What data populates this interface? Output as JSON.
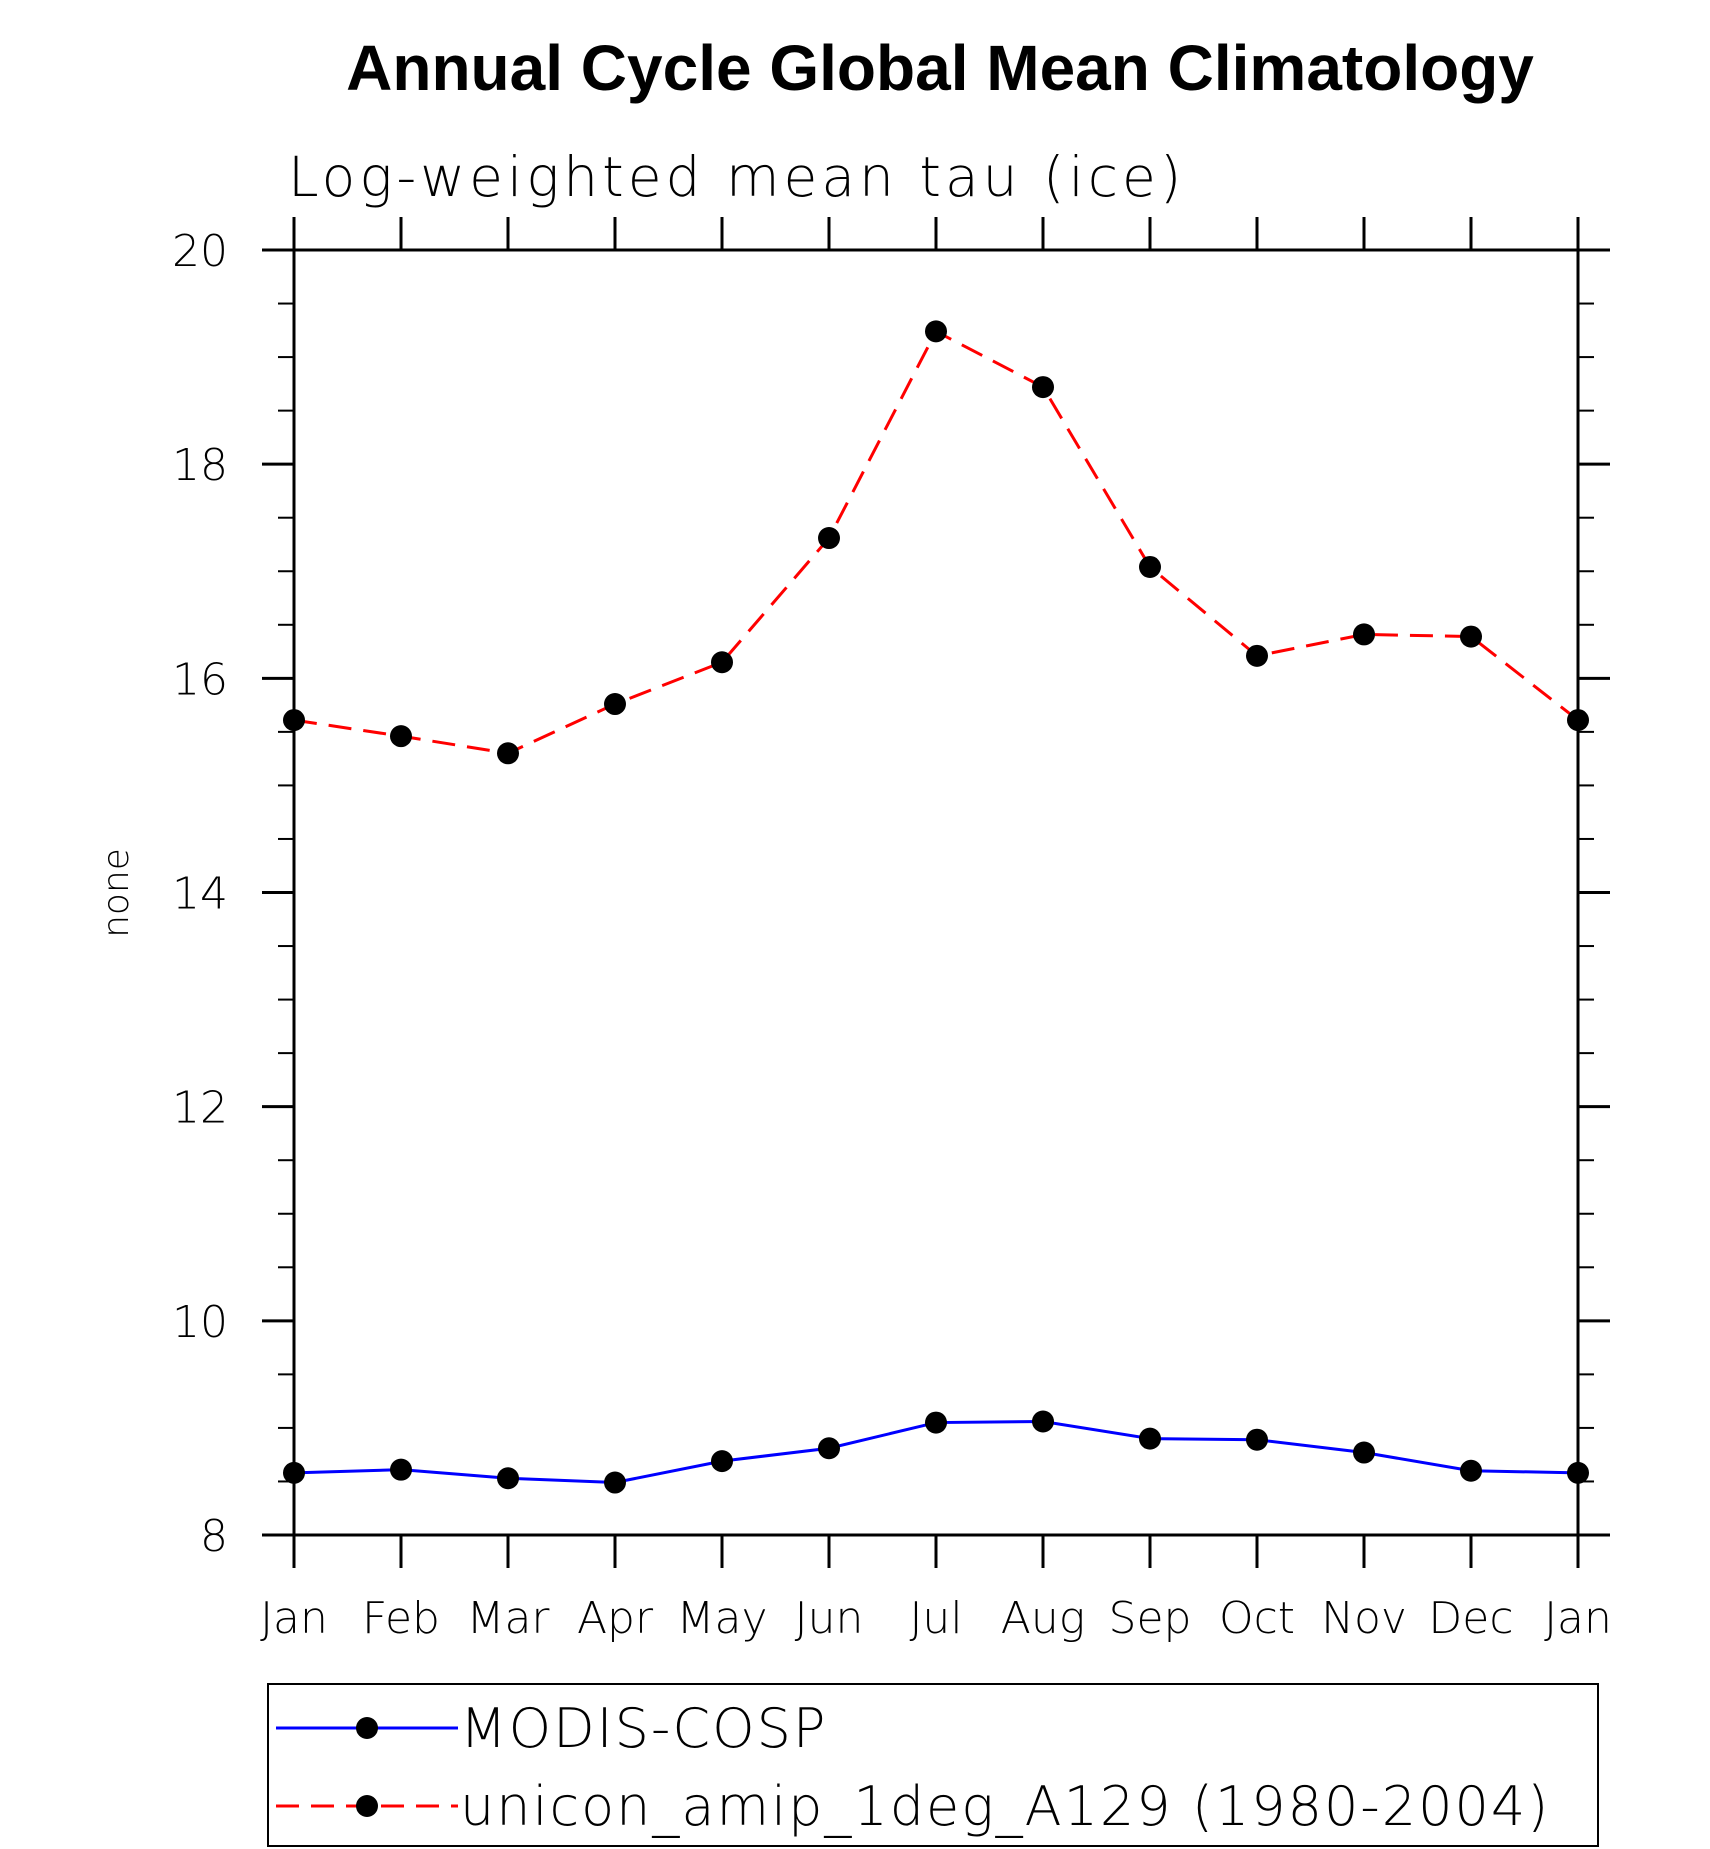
{
  "chart_data": {
    "type": "line",
    "title": "Annual Cycle Global Mean Climatology",
    "subtitle": "Log-weighted mean tau (ice)",
    "xlabel": "",
    "ylabel": "none",
    "categories": [
      "Jan",
      "Feb",
      "Mar",
      "Apr",
      "May",
      "Jun",
      "Jul",
      "Aug",
      "Sep",
      "Oct",
      "Nov",
      "Dec",
      "Jan"
    ],
    "ylim": [
      8,
      20
    ],
    "yticks": [
      8,
      10,
      12,
      14,
      16,
      18,
      20
    ],
    "ytick_labels": [
      "8",
      "10",
      "12",
      "14",
      "16",
      "18",
      "20"
    ],
    "grid": false,
    "legend_position": "bottom",
    "series": [
      {
        "name": "MODIS-COSP",
        "color": "#0000ff",
        "line_style": "solid",
        "marker": "filled-circle",
        "values": [
          8.58,
          8.61,
          8.53,
          8.49,
          8.69,
          8.81,
          9.05,
          9.06,
          8.9,
          8.89,
          8.77,
          8.6,
          8.58
        ]
      },
      {
        "name": "unicon_amip_1deg_A129 (1980-2004)",
        "color": "#ff0000",
        "line_style": "dashed",
        "marker": "filled-circle",
        "values": [
          15.61,
          15.46,
          15.3,
          15.76,
          16.15,
          17.31,
          19.24,
          18.72,
          17.04,
          16.21,
          16.41,
          16.39,
          15.61
        ]
      }
    ]
  }
}
